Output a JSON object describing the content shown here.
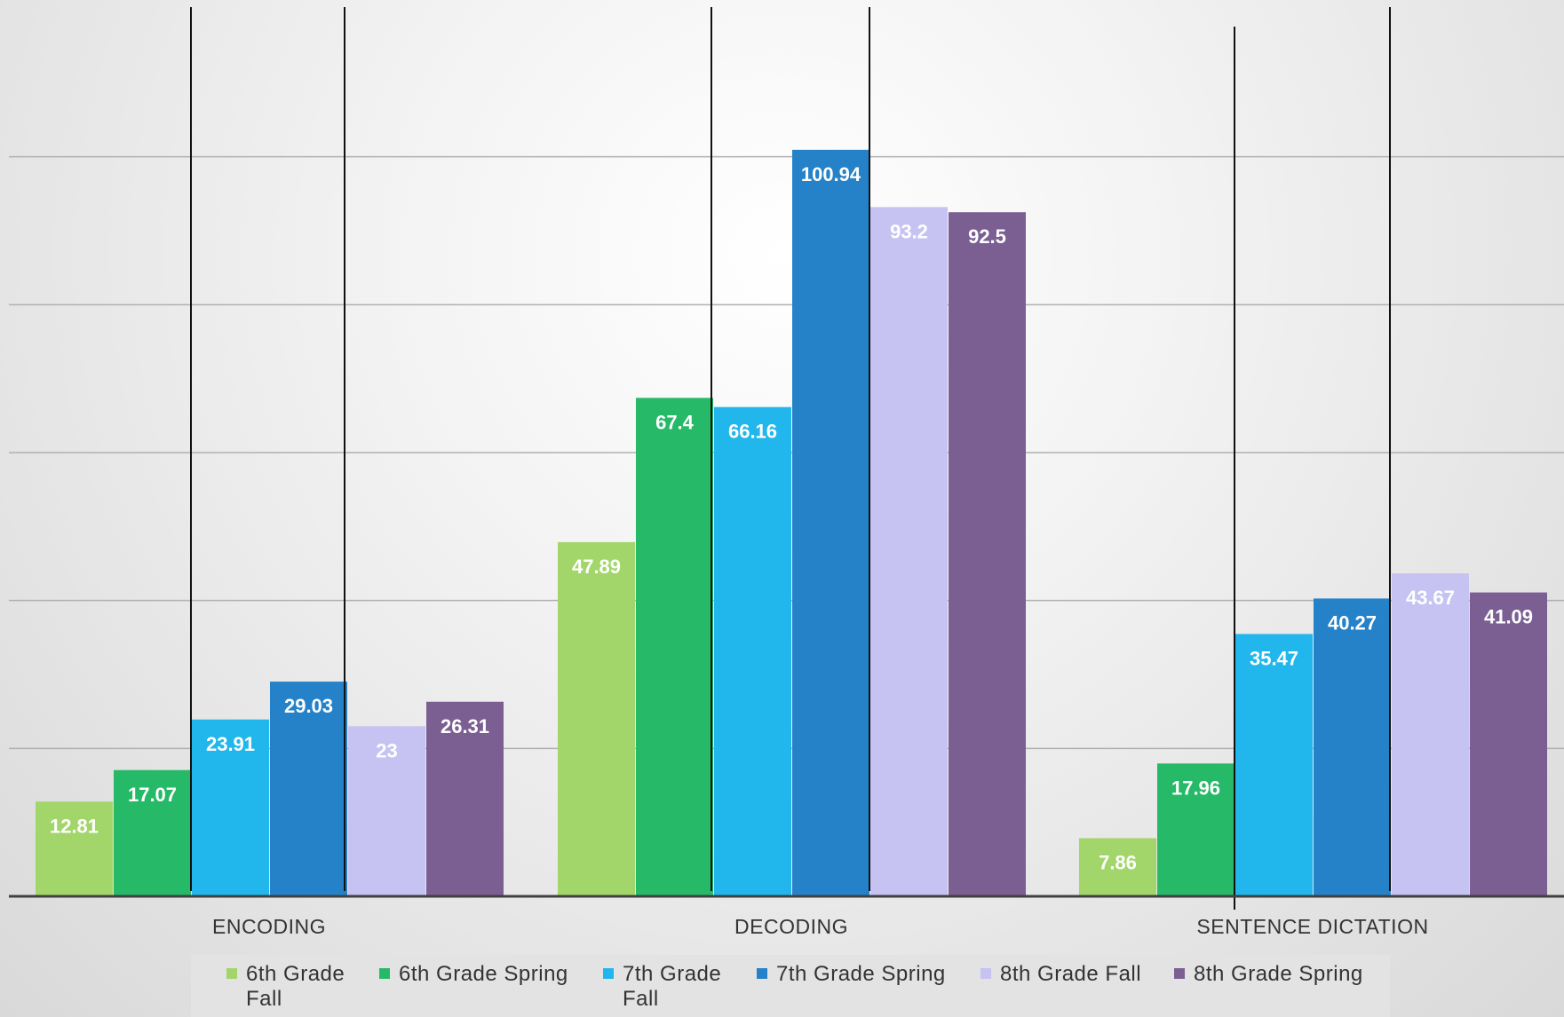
{
  "chart_data": {
    "type": "bar",
    "categories": [
      "ENCODING",
      "DECODING",
      "SENTENCE DICTATION"
    ],
    "series": [
      {
        "name": "6th Grade Fall",
        "color": "#a3d66a",
        "values": [
          12.81,
          47.89,
          7.86
        ]
      },
      {
        "name": "6th Grade Spring",
        "color": "#26b968",
        "values": [
          17.07,
          67.4,
          17.96
        ]
      },
      {
        "name": "7th Grade Fall",
        "color": "#22b7ec",
        "values": [
          23.91,
          66.16,
          35.47
        ]
      },
      {
        "name": "7th Grade Spring",
        "color": "#2582c9",
        "values": [
          29.03,
          100.94,
          40.27
        ]
      },
      {
        "name": "8th Grade Fall",
        "color": "#c6c3f2",
        "values": [
          23,
          93.2,
          43.67
        ]
      },
      {
        "name": "8th Grade Spring",
        "color": "#7b5f93",
        "values": [
          26.31,
          92.5,
          41.09
        ]
      }
    ],
    "ylim": [
      0,
      120
    ],
    "y_gridline_step": 20,
    "y_tick_labels_visible": false,
    "grid": true,
    "data_labels": true,
    "legend_position": "bottom",
    "xlabel": "",
    "ylabel": "",
    "title": ""
  },
  "legend": {
    "items": [
      {
        "line1": "6th Grade",
        "line2": "Fall"
      },
      {
        "line1": "6th Grade Spring",
        "line2": ""
      },
      {
        "line1": "7th Grade",
        "line2": "Fall"
      },
      {
        "line1": "7th Grade Spring",
        "line2": ""
      },
      {
        "line1": "8th Grade Fall",
        "line2": ""
      },
      {
        "line1": "8th Grade Spring",
        "line2": ""
      }
    ]
  }
}
